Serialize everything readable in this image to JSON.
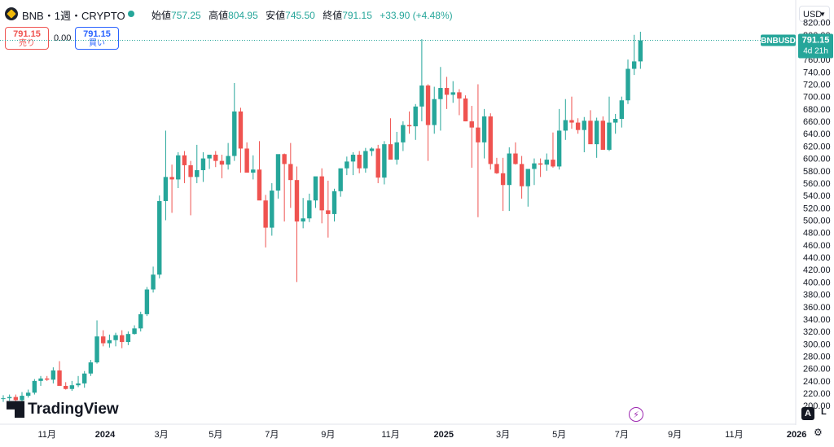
{
  "header": {
    "title": "BNB・1週・CRYPTO",
    "open_label": "始値",
    "open": "757.25",
    "high_label": "高値",
    "high": "804.95",
    "low_label": "安値",
    "low": "745.50",
    "close_label": "終値",
    "close": "791.15",
    "change": "+33.90 (+4.48%)"
  },
  "trade": {
    "sell_price": "791.15",
    "sell_label": "売り",
    "spread": "0.00",
    "buy_price": "791.15",
    "buy_label": "買い"
  },
  "currency": "USD",
  "price_tag": {
    "symbol": "BNBUSD",
    "price": "791.15",
    "countdown": "4d 21h"
  },
  "logo": "TradingView",
  "controls": {
    "auto": "A",
    "log": "L"
  },
  "colors": {
    "up": "#26a69a",
    "down": "#ef5350",
    "accent": "#2962ff"
  },
  "chart_data": {
    "type": "candlestick",
    "title": "",
    "xlabel": "",
    "ylabel": "",
    "ylim": [
      170,
      830
    ],
    "y_ticks": [
      "200.00",
      "220.00",
      "240.00",
      "260.00",
      "280.00",
      "300.00",
      "320.00",
      "340.00",
      "360.00",
      "380.00",
      "400.00",
      "420.00",
      "440.00",
      "460.00",
      "480.00",
      "500.00",
      "520.00",
      "540.00",
      "560.00",
      "580.00",
      "600.00",
      "620.00",
      "640.00",
      "660.00",
      "680.00",
      "700.00",
      "720.00",
      "740.00",
      "760.00",
      "780.00",
      "800.00",
      "820.00"
    ],
    "x_ticks": [
      "11月",
      "2024",
      "3月",
      "5月",
      "7月",
      "9月",
      "11月",
      "2025",
      "3月",
      "5月",
      "7月",
      "9月",
      "11月",
      "2026"
    ],
    "interval": "1W",
    "series": [
      {
        "values": [
          [
            211,
            217,
            206,
            212
          ],
          [
            212,
            218,
            208,
            214
          ],
          [
            214,
            218,
            205,
            209
          ],
          [
            209,
            222,
            204,
            216
          ],
          [
            216,
            226,
            213,
            221
          ],
          [
            221,
            243,
            218,
            240
          ],
          [
            240,
            248,
            232,
            244
          ],
          [
            244,
            248,
            240,
            242
          ],
          [
            242,
            262,
            236,
            257
          ],
          [
            257,
            272,
            236,
            232
          ],
          [
            232,
            238,
            226,
            227
          ],
          [
            227,
            240,
            224,
            233
          ],
          [
            233,
            248,
            230,
            236
          ],
          [
            236,
            256,
            229,
            252
          ],
          [
            252,
            274,
            248,
            270
          ],
          [
            270,
            338,
            268,
            312
          ],
          [
            312,
            322,
            296,
            301
          ],
          [
            301,
            315,
            294,
            306
          ],
          [
            306,
            318,
            296,
            314
          ],
          [
            314,
            322,
            293,
            303
          ],
          [
            303,
            320,
            298,
            316
          ],
          [
            316,
            330,
            315,
            325
          ],
          [
            325,
            352,
            320,
            348
          ],
          [
            348,
            392,
            345,
            388
          ],
          [
            388,
            425,
            383,
            412
          ],
          [
            412,
            540,
            406,
            531
          ],
          [
            531,
            645,
            500,
            570
          ],
          [
            570,
            590,
            512,
            566
          ],
          [
            566,
            610,
            552,
            605
          ],
          [
            605,
            612,
            560,
            589
          ],
          [
            589,
            596,
            508,
            570
          ],
          [
            570,
            622,
            560,
            581
          ],
          [
            581,
            610,
            562,
            600
          ],
          [
            600,
            605,
            583,
            606
          ],
          [
            606,
            612,
            586,
            596
          ],
          [
            596,
            606,
            568,
            590
          ],
          [
            590,
            625,
            582,
            604
          ],
          [
            604,
            722,
            596,
            676
          ],
          [
            676,
            682,
            577,
            616
          ],
          [
            616,
            626,
            580,
            577
          ],
          [
            577,
            605,
            566,
            582
          ],
          [
            582,
            628,
            556,
            532
          ],
          [
            532,
            541,
            456,
            488
          ],
          [
            488,
            560,
            475,
            548
          ],
          [
            548,
            606,
            535,
            607
          ],
          [
            607,
            608,
            498,
            591
          ],
          [
            591,
            625,
            520,
            565
          ],
          [
            565,
            587,
            400,
            498
          ],
          [
            498,
            536,
            487,
            503
          ],
          [
            503,
            543,
            497,
            532
          ],
          [
            532,
            565,
            520,
            571
          ],
          [
            571,
            584,
            495,
            516
          ],
          [
            516,
            564,
            472,
            510
          ],
          [
            510,
            551,
            498,
            547
          ],
          [
            547,
            580,
            538,
            584
          ],
          [
            584,
            603,
            573,
            595
          ],
          [
            595,
            610,
            573,
            606
          ],
          [
            606,
            612,
            576,
            584
          ],
          [
            584,
            617,
            577,
            612
          ],
          [
            612,
            618,
            604,
            616
          ],
          [
            616,
            622,
            560,
            569
          ],
          [
            569,
            628,
            558,
            623
          ],
          [
            623,
            665,
            615,
            598
          ],
          [
            598,
            643,
            590,
            626
          ],
          [
            626,
            660,
            612,
            654
          ],
          [
            654,
            676,
            640,
            652
          ],
          [
            652,
            688,
            630,
            684
          ],
          [
            684,
            793,
            660,
            718
          ],
          [
            718,
            720,
            596,
            654
          ],
          [
            654,
            716,
            640,
            696
          ],
          [
            696,
            748,
            645,
            714
          ],
          [
            714,
            732,
            680,
            703
          ],
          [
            703,
            725,
            690,
            707
          ],
          [
            707,
            712,
            670,
            697
          ],
          [
            697,
            702,
            660,
            660
          ],
          [
            660,
            685,
            585,
            650
          ],
          [
            650,
            720,
            505,
            626
          ],
          [
            626,
            680,
            600,
            668
          ],
          [
            668,
            673,
            582,
            591
          ],
          [
            591,
            601,
            575,
            576
          ],
          [
            576,
            601,
            515,
            557
          ],
          [
            557,
            618,
            515,
            608
          ],
          [
            608,
            626,
            590,
            591
          ],
          [
            591,
            604,
            535,
            555
          ],
          [
            555,
            572,
            522,
            583
          ],
          [
            583,
            600,
            557,
            592
          ],
          [
            592,
            600,
            570,
            590
          ],
          [
            590,
            608,
            580,
            598
          ],
          [
            598,
            642,
            585,
            587
          ],
          [
            587,
            680,
            582,
            645
          ],
          [
            645,
            696,
            630,
            662
          ],
          [
            662,
            700,
            648,
            658
          ],
          [
            658,
            665,
            640,
            646
          ],
          [
            646,
            667,
            610,
            661
          ],
          [
            661,
            678,
            635,
            623
          ],
          [
            623,
            666,
            601,
            661
          ],
          [
            661,
            668,
            615,
            614
          ],
          [
            614,
            700,
            612,
            658
          ],
          [
            658,
            672,
            640,
            664
          ],
          [
            664,
            700,
            650,
            694
          ],
          [
            694,
            760,
            688,
            745
          ],
          [
            745,
            800,
            735,
            757
          ],
          [
            757,
            805,
            745,
            791
          ]
        ]
      }
    ]
  }
}
